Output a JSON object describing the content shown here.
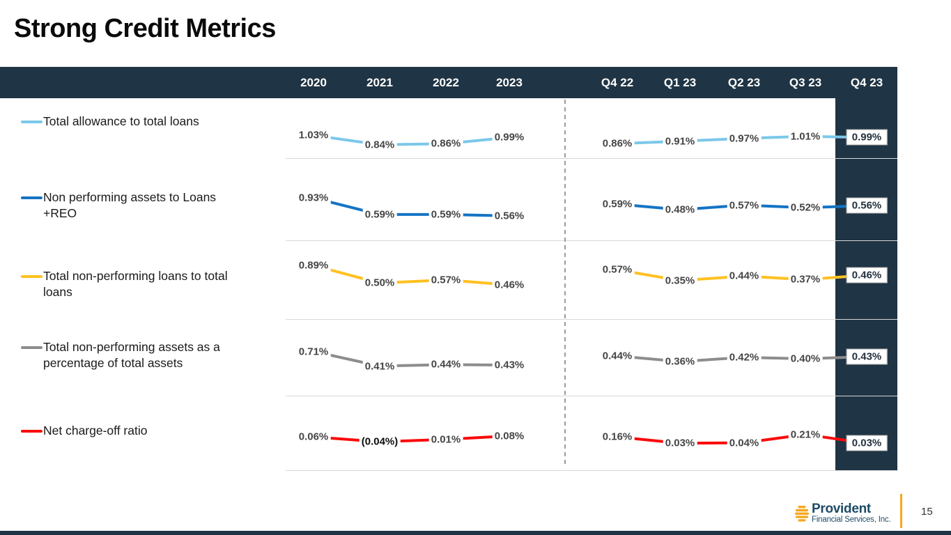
{
  "title": "Strong Credit Metrics",
  "header": {
    "annual_columns": [
      "2020",
      "2021",
      "2022",
      "2023"
    ],
    "quarterly_columns": [
      "Q4 22",
      "Q1 23",
      "Q2 23",
      "Q3 23",
      "Q4 23"
    ]
  },
  "footer": {
    "logo_name": "Provident",
    "logo_subtitle": "Financial Services, Inc.",
    "page_number": "15"
  },
  "colors": {
    "header_bar": "#1F3444",
    "highlight_column": "#1F3444",
    "value_label_text": "#454545",
    "boxed_value_text": "#24303E",
    "logo_navy": "#1D4B66",
    "logo_amber": "#F5A71F"
  },
  "chart_data": {
    "type": "line",
    "title": "Strong Credit Metrics",
    "categories": [
      "2020",
      "2021",
      "2022",
      "2023",
      "Q4 22",
      "Q1 23",
      "Q2 23",
      "Q3 23",
      "Q4 23"
    ],
    "legend_position": "left",
    "grid": "row-separators",
    "series": [
      {
        "name": "Total allowance to total loans",
        "label_lines": [
          "Total allowance to total loans"
        ],
        "color": "#7CC8EA",
        "annual_values": [
          1.03,
          0.84,
          0.86,
          0.99
        ],
        "annual_labels": [
          "1.03%",
          "0.84%",
          "0.86%",
          "0.99%"
        ],
        "quarterly_values": [
          0.86,
          0.91,
          0.97,
          1.01,
          0.99
        ],
        "quarterly_labels": [
          "0.86%",
          "0.91%",
          "0.97%",
          "1.01%",
          "0.99%"
        ]
      },
      {
        "name": "Non performing assets to Loans +REO",
        "label_lines": [
          "Non performing assets to Loans",
          "+REO"
        ],
        "color": "#1474C4",
        "annual_values": [
          0.93,
          0.59,
          0.59,
          0.56
        ],
        "annual_labels": [
          "0.93%",
          "0.59%",
          "0.59%",
          "0.56%"
        ],
        "quarterly_values": [
          0.59,
          0.48,
          0.57,
          0.52,
          0.56
        ],
        "quarterly_labels": [
          "0.59%",
          "0.48%",
          "0.57%",
          "0.52%",
          "0.56%"
        ]
      },
      {
        "name": "Total non-performing loans to total loans",
        "label_lines": [
          "Total non-performing loans to total",
          "loans"
        ],
        "color": "#FFC121",
        "annual_values": [
          0.89,
          0.5,
          0.57,
          0.46
        ],
        "annual_labels": [
          "0.89%",
          "0.50%",
          "0.57%",
          "0.46%"
        ],
        "quarterly_values": [
          0.57,
          0.35,
          0.44,
          0.37,
          0.46
        ],
        "quarterly_labels": [
          "0.57%",
          "0.35%",
          "0.44%",
          "0.37%",
          "0.46%"
        ]
      },
      {
        "name": "Total non-performing assets as a percentage of total assets",
        "label_lines": [
          "Total non-performing assets as a",
          "percentage of total assets"
        ],
        "color": "#8D8D8D",
        "annual_values": [
          0.71,
          0.41,
          0.44,
          0.43
        ],
        "annual_labels": [
          "0.71%",
          "0.41%",
          "0.44%",
          "0.43%"
        ],
        "quarterly_values": [
          0.44,
          0.36,
          0.42,
          0.4,
          0.43
        ],
        "quarterly_labels": [
          "0.44%",
          "0.36%",
          "0.42%",
          "0.40%",
          "0.43%"
        ]
      },
      {
        "name": "Net charge-off ratio",
        "label_lines": [
          "Net charge-off ratio"
        ],
        "color": "#FB0A0A",
        "annual_values": [
          0.06,
          -0.04,
          0.01,
          0.08
        ],
        "annual_labels": [
          "0.06%",
          "(0.04%)",
          "0.01%",
          "0.08%"
        ],
        "quarterly_values": [
          0.16,
          0.03,
          0.04,
          0.21,
          0.03
        ],
        "quarterly_labels": [
          "0.16%",
          "0.03%",
          "0.04%",
          "0.21%",
          "0.03%"
        ]
      }
    ]
  }
}
